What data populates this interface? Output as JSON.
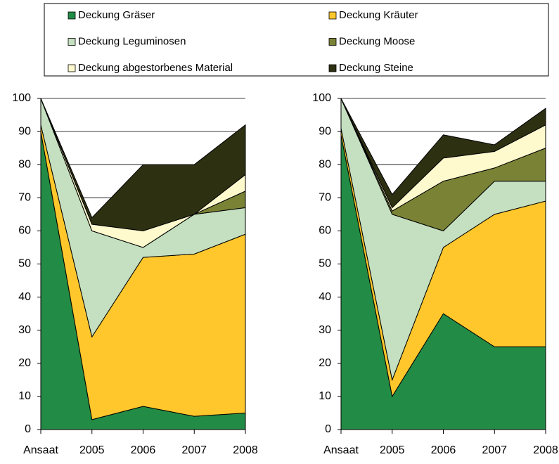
{
  "chart_data": [
    {
      "type": "stacked-area",
      "categories": [
        "Ansaat",
        "2005",
        "2006",
        "2007",
        "2008"
      ],
      "series": [
        {
          "name": "Deckung Gräser",
          "color": "#228b45",
          "values": [
            90,
            3,
            7,
            4,
            5
          ]
        },
        {
          "name": "Deckung Kräuter",
          "color": "#ffc72c",
          "values": [
            2,
            25,
            45,
            49,
            54
          ]
        },
        {
          "name": "Deckung Leguminosen",
          "color": "#c5e0c0",
          "values": [
            8,
            32,
            3,
            12,
            8
          ]
        },
        {
          "name": "Deckung Moose",
          "color": "#7a8235",
          "values": [
            0,
            0,
            0,
            0,
            5
          ]
        },
        {
          "name": "Deckung abgestorbenes Material",
          "color": "#fffacd",
          "values": [
            0,
            2,
            5,
            0,
            5
          ]
        },
        {
          "name": "Deckung Steine",
          "color": "#2e3012",
          "values": [
            0,
            2,
            20,
            15,
            15
          ]
        }
      ],
      "ylim": [
        0,
        100
      ],
      "yticks": [
        0,
        10,
        20,
        30,
        40,
        50,
        60,
        70,
        80,
        90,
        100
      ],
      "grid": true
    },
    {
      "type": "stacked-area",
      "categories": [
        "Ansaat",
        "2005",
        "2006",
        "2007",
        "2008"
      ],
      "series": [
        {
          "color": "#228b45",
          "values": [
            89,
            10,
            35,
            25,
            25
          ]
        },
        {
          "color": "#ffc72c",
          "values": [
            2,
            5,
            20,
            40,
            44
          ]
        },
        {
          "color": "#c5e0c0",
          "values": [
            9,
            50,
            5,
            10,
            6
          ]
        },
        {
          "color": "#7a8235",
          "values": [
            0,
            1,
            15,
            4,
            10
          ]
        },
        {
          "color": "#fffacd",
          "values": [
            0,
            1,
            7,
            5,
            7
          ]
        },
        {
          "color": "#2e3012",
          "values": [
            0,
            4,
            7,
            2,
            5
          ]
        }
      ],
      "ylim": [
        0,
        100
      ],
      "yticks": [
        0,
        10,
        20,
        30,
        40,
        50,
        60,
        70,
        80,
        90,
        100
      ],
      "grid": true
    }
  ]
}
